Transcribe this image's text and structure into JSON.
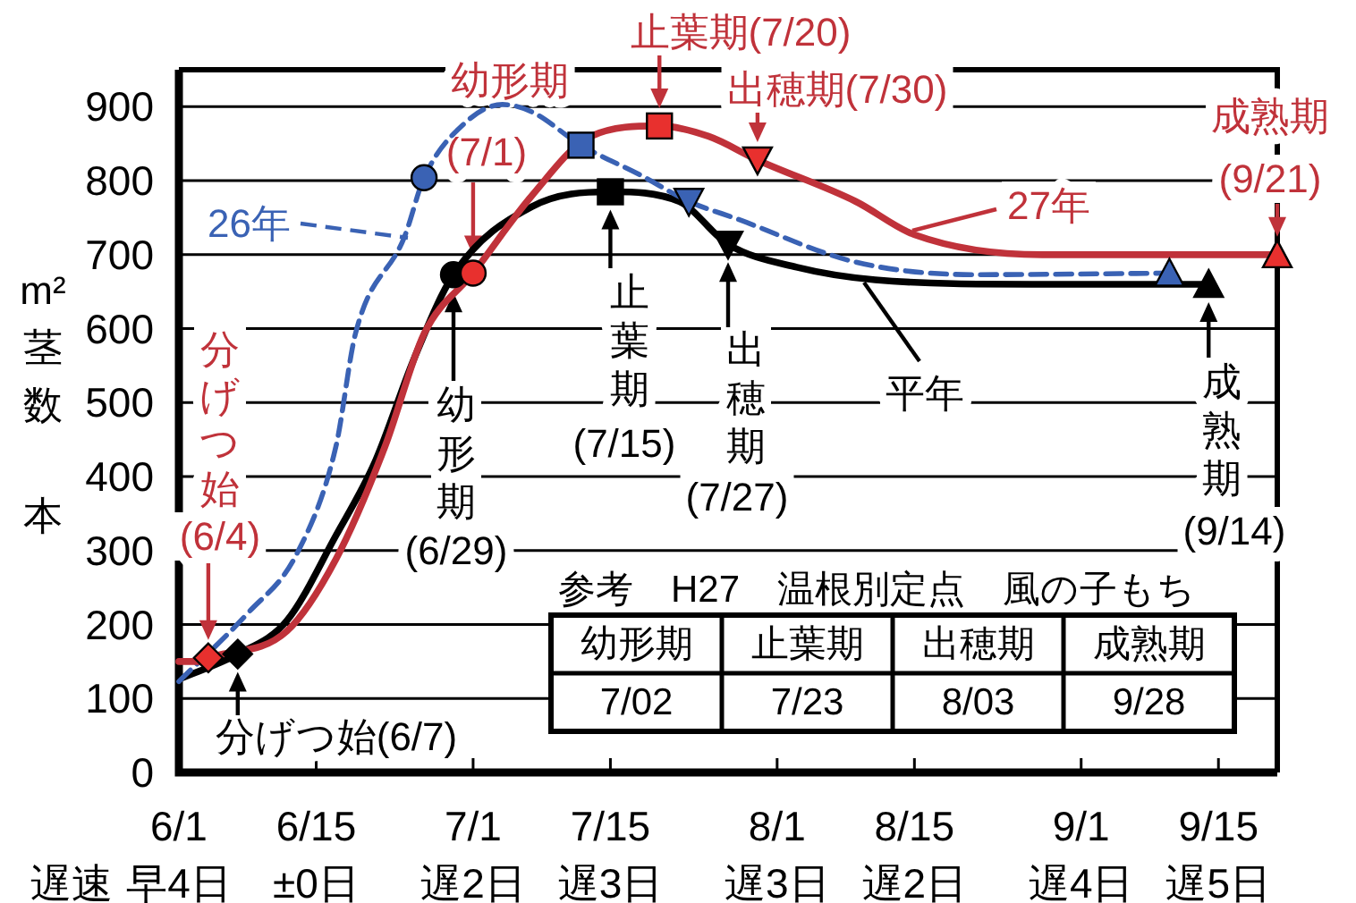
{
  "chart_data": {
    "type": "line",
    "ylabel": "m²茎数本",
    "xlim": [
      "--06-01",
      "--09-21"
    ],
    "ylim": [
      0,
      950
    ],
    "yticks": [
      0,
      100,
      200,
      300,
      400,
      500,
      600,
      700,
      800,
      900
    ],
    "xticks": [
      {
        "value": "--06-01",
        "label": "6/1\n早4日"
      },
      {
        "value": "--06-15",
        "label": "6/15\n±0日"
      },
      {
        "value": "--07-01",
        "label": "7/1\n遅2日"
      },
      {
        "value": "--07-15",
        "label": "7/15\n遅3日"
      },
      {
        "value": "--08-01",
        "label": "8/1\n遅3日"
      },
      {
        "value": "--08-15",
        "label": "8/15\n遅2日"
      },
      {
        "value": "--09-01",
        "label": "9/1\n遅4日"
      },
      {
        "value": "--09-15",
        "label": "9/15\n遅5日"
      }
    ],
    "grid": "y",
    "series": [
      {
        "name": "平年",
        "color": "#000000",
        "x": [
          "--06-01",
          "--06-07",
          "--06-12",
          "--06-17",
          "--06-21",
          "--06-25",
          "--06-29",
          "--07-07",
          "--07-15",
          "--07-22",
          "--07-27",
          "--08-03",
          "--08-11",
          "--08-27",
          "--09-14"
        ],
        "values": [
          126,
          160,
          205,
          320,
          420,
          560,
          673,
          765,
          785,
          772,
          714,
          683,
          666,
          660,
          660
        ]
      },
      {
        "name": "26年",
        "color": "#3a62b4",
        "line_style": "dashed",
        "x": [
          "--06-01",
          "--06-08",
          "--06-13",
          "--06-17",
          "--06-19",
          "--06-24",
          "--06-26",
          "--06-30",
          "--07-04",
          "--07-07",
          "--07-12",
          "--07-18",
          "--07-23",
          "--07-28",
          "--08-09",
          "--08-21",
          "--09-10"
        ],
        "values": [
          123,
          215,
          295,
          440,
          593,
          724,
          804,
          876,
          903,
          893,
          848,
          808,
          772,
          748,
          690,
          673,
          675
        ]
      },
      {
        "name": "27年",
        "color": "#c0323a",
        "x": [
          "--06-01",
          "--06-03",
          "--06-04",
          "--06-12",
          "--06-17",
          "--06-22",
          "--06-26",
          "--07-01",
          "--07-07",
          "--07-13",
          "--07-20",
          "--07-25",
          "--07-30",
          "--08-09",
          "--08-15",
          "--08-28",
          "--09-21"
        ],
        "values": [
          150,
          150,
          155,
          191,
          288,
          440,
          593,
          675,
          780,
          860,
          874,
          860,
          828,
          772,
          727,
          700,
          700
        ]
      },
      {
        "type": "scatter",
        "marker": "diamond",
        "x": [
          "--06-04",
          "--06-07"
        ],
        "values": [
          155,
          160
        ],
        "colors": [
          "#e8302e",
          "#000000"
        ]
      },
      {
        "type": "scatter",
        "marker": "circle",
        "x": [
          "--06-26",
          "--06-29",
          "--07-01"
        ],
        "values": [
          804,
          673,
          675
        ],
        "colors": [
          "#3a62b4",
          "#000000",
          "#e8302e"
        ]
      },
      {
        "type": "scatter",
        "marker": "square",
        "x": [
          "--07-12",
          "--07-15",
          "--07-20"
        ],
        "values": [
          848,
          785,
          874
        ],
        "colors": [
          "#3a62b4",
          "#000000",
          "#e8302e"
        ]
      },
      {
        "type": "scatter",
        "marker": "triangle_down",
        "x": [
          "--07-23",
          "--07-27",
          "--07-30"
        ],
        "values": [
          772,
          714,
          828
        ],
        "colors": [
          "#3a62b4",
          "#000000",
          "#e8302e"
        ]
      },
      {
        "type": "scatter",
        "marker": "triangle",
        "x": [
          "--09-10",
          "--09-14",
          "--09-21"
        ],
        "values": [
          675,
          660,
          700
        ],
        "colors": [
          "#3a62b4",
          "#000000",
          "#e8302e"
        ]
      }
    ],
    "annotations": [
      {
        "text": "分げつ始(6/7)",
        "x": "--06-07",
        "y": 160
      },
      {
        "text": "幼形期(6/29)",
        "x": "--06-29",
        "y": 673
      },
      {
        "text": "止葉期(7/15)",
        "x": "--07-15",
        "y": 785
      },
      {
        "text": "出穂期(7/27)",
        "x": "--07-27",
        "y": 714
      },
      {
        "text": "成熟期(9/14)",
        "x": "--09-14",
        "y": 660
      },
      {
        "text": "分げつ始(6/4)",
        "x": "--06-04",
        "y": 155
      },
      {
        "text": "幼形期(7/1)",
        "x": "--07-01",
        "y": 675
      },
      {
        "text": "止葉期(7/20)",
        "x": "--07-20",
        "y": 874
      },
      {
        "text": "出穂期(7/30)",
        "x": "--07-30",
        "y": 828
      },
      {
        "text": "成熟期(9/21)",
        "x": "--09-21",
        "y": 700
      },
      "遅速",
      "参考　H27　温根別定点　風の子もち",
      "幼形期",
      "止葉期",
      "出穂期",
      "成熟期",
      "7/02",
      "7/23",
      "8/03",
      "9/28"
    ]
  }
}
